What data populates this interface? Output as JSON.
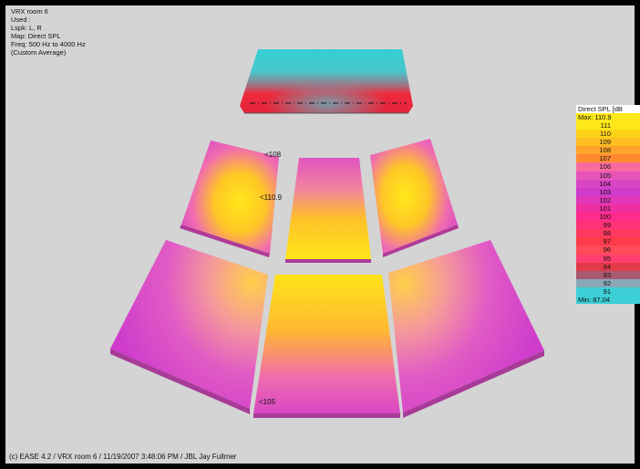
{
  "info": {
    "line1": "VRX room 6",
    "line2": "Used :",
    "line3": "Lspk: L, R",
    "line4": "Map: Direct SPL",
    "line5": "Freq: 500 Hz to  4000 Hz",
    "line6": "(Custom Average)"
  },
  "map_labels": {
    "label_a": "<108",
    "label_b": "<110.9",
    "label_c": "<105"
  },
  "legend": {
    "title": "Direct SPL [dB",
    "max_label": "Max:",
    "max_value": "110.9",
    "min_label": "Min:",
    "min_value": "87.04",
    "levels": [
      {
        "value": "111",
        "color": "#ffe81a"
      },
      {
        "value": "110",
        "color": "#ffd21a"
      },
      {
        "value": "109",
        "color": "#ffbe22"
      },
      {
        "value": "108",
        "color": "#ffa42a"
      },
      {
        "value": "107",
        "color": "#ff8a30"
      },
      {
        "value": "106",
        "color": "#f86aa0"
      },
      {
        "value": "105",
        "color": "#e654b8"
      },
      {
        "value": "104",
        "color": "#d844c4"
      },
      {
        "value": "103",
        "color": "#cf3ccc"
      },
      {
        "value": "102",
        "color": "#e038b8"
      },
      {
        "value": "101",
        "color": "#f02ea0"
      },
      {
        "value": "100",
        "color": "#ff2a8c"
      },
      {
        "value": "99",
        "color": "#ff3278"
      },
      {
        "value": "98",
        "color": "#ff3a60"
      },
      {
        "value": "97",
        "color": "#ff3a4a"
      },
      {
        "value": "96",
        "color": "#ff4a5a"
      },
      {
        "value": "95",
        "color": "#ff3f70"
      },
      {
        "value": "94",
        "color": "#e23a48"
      },
      {
        "value": "93",
        "color": "#a85a70"
      },
      {
        "value": "92",
        "color": "#8aa8b8"
      },
      {
        "value": "91",
        "color": "#3ccfd6"
      }
    ]
  },
  "footer": "(c) EASE 4.2  / VRX room 6  / 11/19/2007 3:48:06 PM / JBL Jay Fullmer"
}
